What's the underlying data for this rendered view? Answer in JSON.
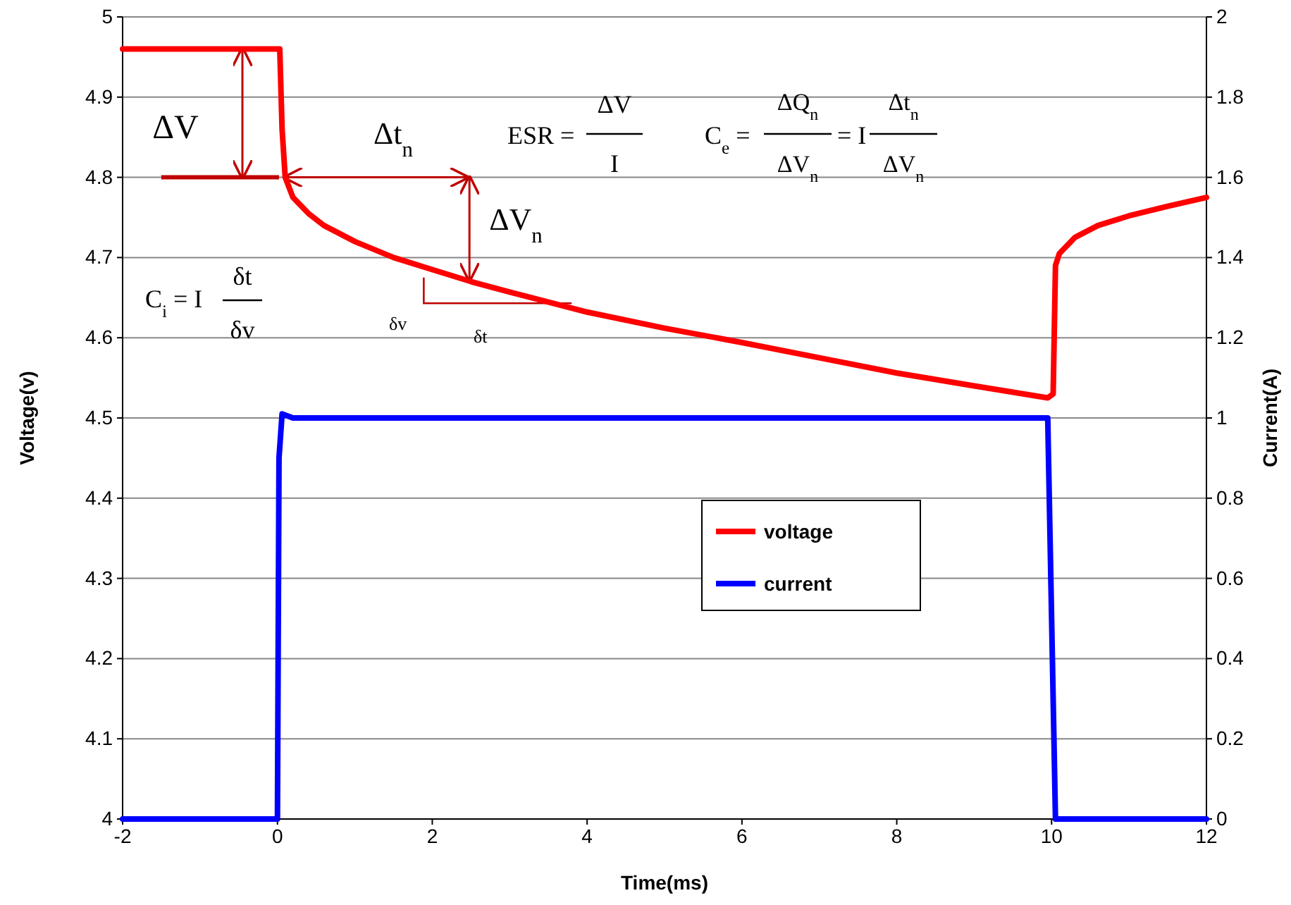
{
  "chart_data": {
    "type": "line",
    "xlabel": "Time(ms)",
    "ylabel": "Voltage(v)",
    "y2label": "Current(A)",
    "xlim": [
      -2,
      12
    ],
    "xticks": [
      -2,
      0,
      2,
      4,
      6,
      8,
      10,
      12
    ],
    "ylim": [
      4,
      5
    ],
    "yticks": [
      4,
      4.1,
      4.2,
      4.3,
      4.4,
      4.5,
      4.6,
      4.7,
      4.8,
      4.9,
      5
    ],
    "y2lim": [
      0,
      2
    ],
    "y2ticks": [
      0,
      0.2,
      0.4,
      0.6,
      0.8,
      1,
      1.2,
      1.4,
      1.6,
      1.8,
      2
    ],
    "grid": "y",
    "legend": "right",
    "line_style": "solid",
    "marker": "none",
    "series": [
      {
        "name": "voltage",
        "color": "#ff0000",
        "x": [
          -2,
          0.03,
          0.06,
          0.1,
          0.2,
          0.4,
          0.6,
          1,
          1.5,
          2,
          2.5,
          3,
          4,
          5,
          6,
          7,
          8,
          9,
          9.95,
          10.02,
          10.05,
          10.1,
          10.3,
          10.6,
          11,
          11.5,
          12
        ],
        "values": [
          4.96,
          4.96,
          4.86,
          4.8,
          4.775,
          4.755,
          4.74,
          4.72,
          4.7,
          4.685,
          4.67,
          4.657,
          4.632,
          4.612,
          4.594,
          4.575,
          4.556,
          4.54,
          4.525,
          4.53,
          4.69,
          4.705,
          4.725,
          4.74,
          4.752,
          4.764,
          4.775
        ]
      },
      {
        "name": "current",
        "color": "#0000ff",
        "axis": "y2",
        "x": [
          -2,
          0,
          0.02,
          0.06,
          0.2,
          0.5,
          9.95,
          10,
          10.05,
          12
        ],
        "values": [
          0,
          0,
          0.9,
          1.01,
          1.0,
          1.0,
          1.0,
          0.5,
          0,
          0
        ]
      }
    ],
    "annotations": [
      {
        "text": "ΔV",
        "x": -0.45,
        "y": 4.96
      },
      "Δt$_{n}$",
      "ESR =",
      "ΔV",
      "I",
      "C$_{e}$ =",
      "ΔQ$_{n}$",
      "ΔV$_{n}$",
      "= I",
      "Δt$_{n}$",
      "ΔV$_{n}$",
      {
        "text": "ΔV$_{n}$",
        "x": 2.48,
        "y": 4.67
      },
      "C$_{i}$ = I",
      "δt",
      "δv",
      "δv",
      "δt"
    ]
  }
}
